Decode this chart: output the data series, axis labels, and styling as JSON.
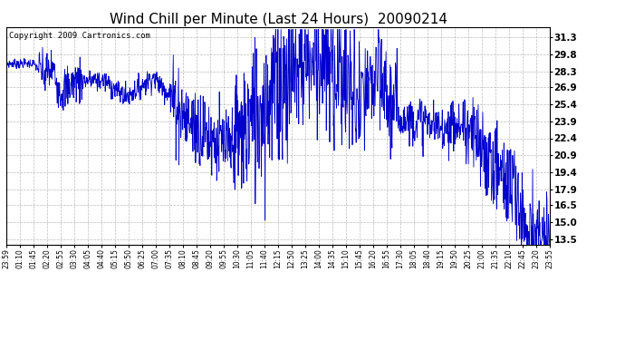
{
  "title": "Wind Chill per Minute (Last 24 Hours)  20090214",
  "copyright_text": "Copyright 2009 Cartronics.com",
  "line_color": "#0000cc",
  "background_color": "#ffffff",
  "plot_bg_color": "#ffffff",
  "grid_color": "#aaaaaa",
  "yticks": [
    13.5,
    15.0,
    16.5,
    17.9,
    19.4,
    20.9,
    22.4,
    23.9,
    25.4,
    26.9,
    28.3,
    29.8,
    31.3
  ],
  "ymin": 13.0,
  "ymax": 32.2,
  "xtick_labels": [
    "23:59",
    "01:10",
    "01:45",
    "02:20",
    "02:55",
    "03:30",
    "04:05",
    "04:40",
    "05:15",
    "05:50",
    "06:25",
    "07:00",
    "07:35",
    "08:10",
    "08:45",
    "09:20",
    "09:55",
    "10:30",
    "11:05",
    "11:40",
    "12:15",
    "12:50",
    "13:25",
    "14:00",
    "14:35",
    "15:10",
    "15:45",
    "16:20",
    "16:55",
    "17:30",
    "18:05",
    "18:40",
    "19:15",
    "19:50",
    "20:25",
    "21:00",
    "21:35",
    "22:10",
    "22:45",
    "23:20",
    "23:55"
  ],
  "title_fontsize": 11,
  "copyright_fontsize": 6.5,
  "ylabel_fontsize": 7.5,
  "xlabel_fontsize": 5.5,
  "line_width": 0.6
}
